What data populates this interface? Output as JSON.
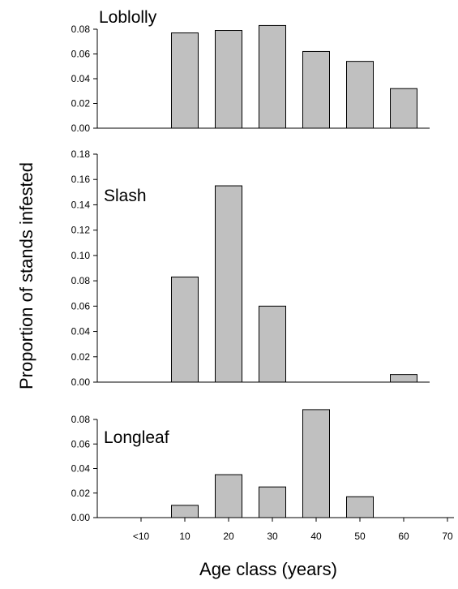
{
  "chart_data": {
    "type": "bar",
    "ylabel": "Proportion of stands infested",
    "xlabel": "Age class (years)",
    "x_tick_labels": [
      "<10",
      "10",
      "20",
      "30",
      "40",
      "50",
      "60",
      "70"
    ],
    "categories": [
      "10",
      "20",
      "30",
      "40",
      "50",
      "60"
    ],
    "bar_color": "#c0c0c0",
    "panels": [
      {
        "title": "Loblolly",
        "values": [
          0.077,
          0.079,
          0.083,
          0.062,
          0.054,
          0.032
        ],
        "ylim": [
          0,
          0.08
        ],
        "yticks": [
          "0.00",
          "0.02",
          "0.04",
          "0.06",
          "0.08"
        ]
      },
      {
        "title": "Slash",
        "values": [
          0.083,
          0.155,
          0.06,
          0,
          0,
          0.006
        ],
        "ylim": [
          0,
          0.18
        ],
        "yticks": [
          "0.00",
          "0.02",
          "0.04",
          "0.06",
          "0.08",
          "0.10",
          "0.12",
          "0.14",
          "0.16",
          "0.18"
        ]
      },
      {
        "title": "Longleaf",
        "values": [
          0.01,
          0.035,
          0.025,
          0.088,
          0.017,
          0
        ],
        "ylim": [
          0,
          0.08
        ],
        "yticks": [
          "0.00",
          "0.02",
          "0.04",
          "0.06",
          "0.08"
        ]
      }
    ]
  }
}
